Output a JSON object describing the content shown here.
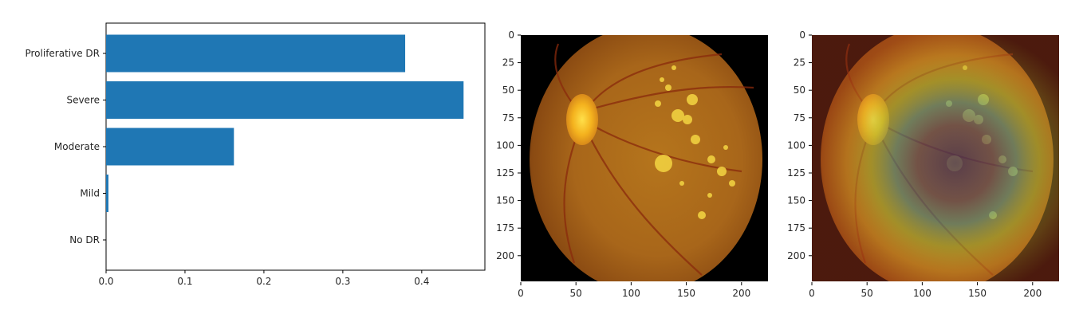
{
  "chart_data": [
    {
      "type": "bar",
      "orientation": "horizontal",
      "categories": [
        "No DR",
        "Mild",
        "Moderate",
        "Severe",
        "Proliferative DR"
      ],
      "values": [
        0.0,
        0.003,
        0.162,
        0.453,
        0.379
      ],
      "xlim": [
        0,
        0.48
      ],
      "x_ticks": [
        "0.0",
        "0.1",
        "0.2",
        "0.3",
        "0.4"
      ],
      "x_tick_values": [
        0,
        0.1,
        0.2,
        0.3,
        0.4
      ],
      "bar_color": "#1f77b4",
      "grid": false,
      "title": "",
      "xlabel": "",
      "ylabel": ""
    },
    {
      "type": "image",
      "content": "retina fundus photograph",
      "x_ticks": [
        "0",
        "50",
        "100",
        "150",
        "200"
      ],
      "y_ticks": [
        "0",
        "25",
        "50",
        "75",
        "100",
        "125",
        "150",
        "175",
        "200"
      ],
      "xlim": [
        0,
        224
      ],
      "ylim": [
        224,
        0
      ]
    },
    {
      "type": "image",
      "content": "retina fundus photograph with heatmap overlay",
      "x_ticks": [
        "0",
        "50",
        "100",
        "150",
        "200"
      ],
      "y_ticks": [
        "0",
        "25",
        "50",
        "75",
        "100",
        "125",
        "150",
        "175",
        "200"
      ],
      "xlim": [
        0,
        224
      ],
      "ylim": [
        224,
        0
      ]
    }
  ]
}
